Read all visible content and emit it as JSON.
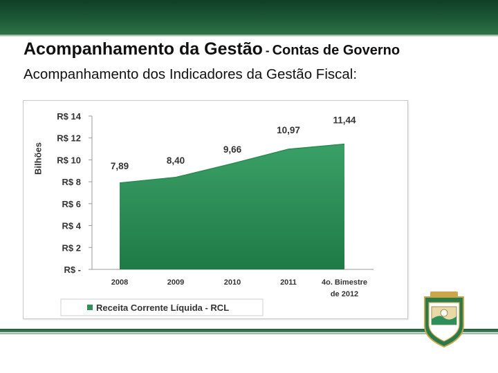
{
  "header": {
    "title": "Acompanhamento da Gestão",
    "separator": "-",
    "title_suffix": "Contas de Governo",
    "subtitle": "Acompanhamento dos Indicadores da Gestão Fiscal:"
  },
  "colors": {
    "banner": "#1d5a37",
    "area_fill": "#2f8f5a",
    "legend_swatch": "#2f8f5a"
  },
  "emblem": {
    "icon": "state-coat-of-arms-icon"
  },
  "chart_data": {
    "type": "area",
    "title": "",
    "ylabel": "Bilhões",
    "xlabel": "",
    "categories": [
      "2008",
      "2009",
      "2010",
      "2011",
      "4o. Bimestre de 2012"
    ],
    "category_lines": [
      [
        "2008"
      ],
      [
        "2009"
      ],
      [
        "2010"
      ],
      [
        "2011"
      ],
      [
        "4o. Bimestre",
        "de 2012"
      ]
    ],
    "series": [
      {
        "name": "Receita Corrente Líquida - RCL",
        "values": [
          7.89,
          8.4,
          9.66,
          10.97,
          11.44
        ]
      }
    ],
    "value_labels": [
      "7,89",
      "8,40",
      "9,66",
      "10,97",
      "11,44"
    ],
    "y_ticks": [
      {
        "value": 14,
        "label": "R$ 14"
      },
      {
        "value": 12,
        "label": "R$ 12"
      },
      {
        "value": 10,
        "label": "R$ 10"
      },
      {
        "value": 8,
        "label": "R$ 8"
      },
      {
        "value": 6,
        "label": "R$ 6"
      },
      {
        "value": 4,
        "label": "R$ 4"
      },
      {
        "value": 2,
        "label": "R$ 2"
      },
      {
        "value": 0,
        "label": "R$ -"
      }
    ],
    "ylim": [
      0,
      14
    ],
    "grid": false,
    "legend_position": "bottom"
  }
}
